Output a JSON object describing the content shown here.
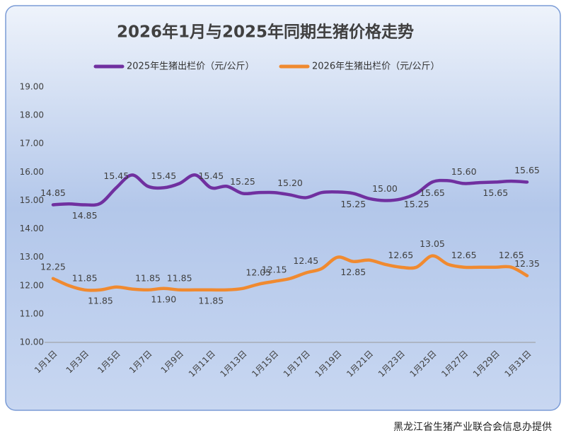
{
  "chart_data": {
    "type": "line",
    "title": "2026年1月与2025年同期生猪价格走势",
    "source": "黑龙江省生猪产业联合会信息办提供",
    "categories": [
      "1月1日",
      null,
      "1月3日",
      null,
      "1月5日",
      null,
      "1月7日",
      null,
      "1月9日",
      null,
      "1月11日",
      null,
      "1月13日",
      null,
      "1月15日",
      null,
      "1月17日",
      null,
      "1月19日",
      null,
      "1月21日",
      null,
      "1月23日",
      null,
      "1月25日",
      null,
      "1月27日",
      null,
      "1月29日",
      null,
      "1月31日"
    ],
    "series": [
      {
        "name": "2025年生猪出栏价（元/公斤）",
        "color": "#7030a0",
        "values": [
          14.85,
          14.88,
          14.85,
          14.9,
          15.45,
          15.9,
          15.5,
          15.45,
          15.6,
          15.9,
          15.45,
          15.5,
          15.25,
          15.28,
          15.28,
          15.2,
          15.1,
          15.28,
          15.3,
          15.25,
          15.07,
          15.0,
          15.05,
          15.25,
          15.65,
          15.7,
          15.6,
          15.63,
          15.65,
          15.68,
          15.65
        ],
        "value_labels": [
          "14.85",
          null,
          "14.85",
          null,
          "15.45",
          null,
          null,
          "15.45",
          null,
          null,
          "15.45",
          null,
          "15.25",
          null,
          null,
          "15.20",
          null,
          null,
          null,
          "15.25",
          null,
          "15.00",
          null,
          "15.25",
          "15.65",
          null,
          "15.60",
          null,
          "15.65",
          null,
          "15.65"
        ]
      },
      {
        "name": "2026年生猪出栏价（元/公斤）",
        "color": "#f08a30",
        "values": [
          12.25,
          12.0,
          11.85,
          11.85,
          11.95,
          11.88,
          11.85,
          11.9,
          11.85,
          11.85,
          11.85,
          11.85,
          11.9,
          12.05,
          12.15,
          12.25,
          12.45,
          12.6,
          13.0,
          12.85,
          12.9,
          12.75,
          12.65,
          12.65,
          13.05,
          12.75,
          12.65,
          12.65,
          12.65,
          12.65,
          12.35
        ],
        "value_labels": [
          "12.25",
          null,
          "11.85",
          "11.85",
          null,
          null,
          "11.85",
          "11.90",
          "11.85",
          null,
          "11.85",
          null,
          null,
          "12.05",
          "12.15",
          null,
          "12.45",
          null,
          null,
          "12.85",
          null,
          null,
          "12.65",
          null,
          "13.05",
          null,
          "12.65",
          null,
          null,
          "12.65",
          "12.35"
        ]
      }
    ],
    "ylim": [
      10,
      19
    ],
    "yticks": [
      {
        "value": 10,
        "label": "10.00"
      },
      {
        "value": 11,
        "label": "11.00"
      },
      {
        "value": 12,
        "label": "12.00"
      },
      {
        "value": 13,
        "label": "13.00"
      },
      {
        "value": 14,
        "label": "14.00"
      },
      {
        "value": 15,
        "label": "15.00"
      },
      {
        "value": 16,
        "label": "16.00"
      },
      {
        "value": 17,
        "label": "17.00"
      },
      {
        "value": 18,
        "label": "18.00"
      },
      {
        "value": 19,
        "label": "19.00"
      }
    ],
    "grid": false,
    "legend": "top"
  }
}
